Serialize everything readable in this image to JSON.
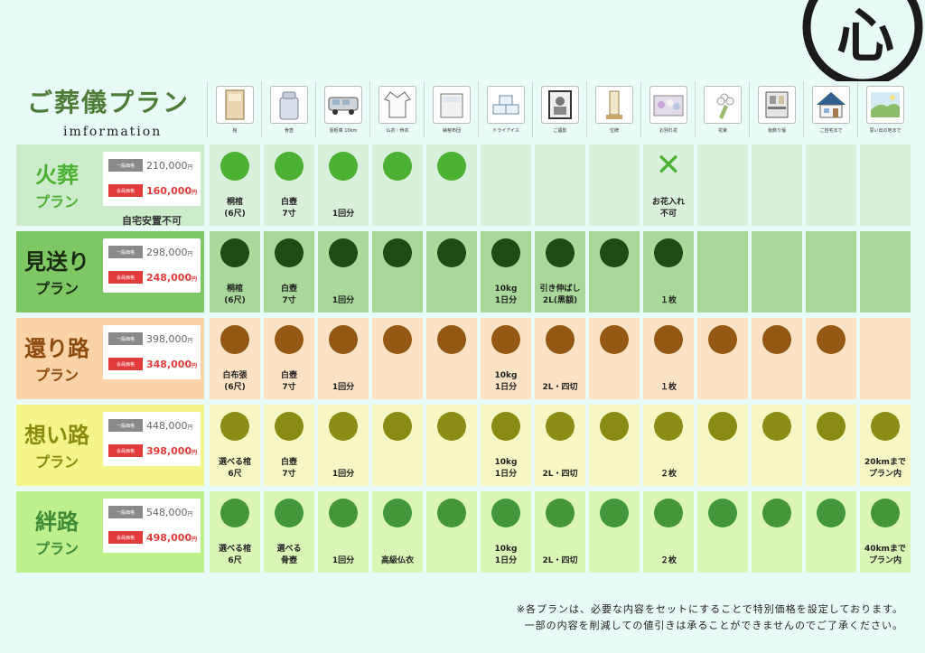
{
  "title": {
    "main": "ご葬儀プラン",
    "sub": "imformation"
  },
  "logo_char": "心",
  "items": [
    {
      "icon": "coffin-icon",
      "label": "棺"
    },
    {
      "icon": "urn-icon",
      "label": "骨壺"
    },
    {
      "icon": "hearse-icon",
      "label": "霊柩車 10km"
    },
    {
      "icon": "burial-robe-icon",
      "label": "仏衣・骨衣"
    },
    {
      "icon": "bedding-icon",
      "label": "納棺布団"
    },
    {
      "icon": "dry-ice-icon",
      "label": "ドライアイス"
    },
    {
      "icon": "portrait-icon",
      "label": "ご遺影"
    },
    {
      "icon": "memorial-tablet-icon",
      "label": "位牌"
    },
    {
      "icon": "flowers-icon",
      "label": "お別れ花"
    },
    {
      "icon": "bouquet-icon",
      "label": "花束"
    },
    {
      "icon": "altar-icon",
      "label": "後飾り壇"
    },
    {
      "icon": "house-icon",
      "label": "ご自宅まで"
    },
    {
      "icon": "scenery-icon",
      "label": "思い出の地まで"
    }
  ],
  "plans": [
    {
      "name": "火葬",
      "suffix": "プラン",
      "name_color": "#4cb033",
      "label_bg": "#cdeccc",
      "cell_bg": "#d9f0da",
      "dot_color": "#4cb033",
      "regular_label": "一般価格",
      "regular_price": "210,000",
      "member_label": "会員価格",
      "member_price": "160,000",
      "yen": "円",
      "note": "自宅安置不可",
      "cells": [
        {
          "mark": "dot",
          "text": "桐棺\n(6尺)"
        },
        {
          "mark": "dot",
          "text": "白壺\n7寸"
        },
        {
          "mark": "dot",
          "text": "1回分"
        },
        {
          "mark": "dot",
          "text": ""
        },
        {
          "mark": "dot",
          "text": ""
        },
        {
          "mark": "",
          "text": ""
        },
        {
          "mark": "",
          "text": ""
        },
        {
          "mark": "",
          "text": ""
        },
        {
          "mark": "cross",
          "text": "お花入れ\n不可"
        },
        {
          "mark": "",
          "text": ""
        },
        {
          "mark": "",
          "text": ""
        },
        {
          "mark": "",
          "text": ""
        },
        {
          "mark": "",
          "text": ""
        }
      ]
    },
    {
      "name": "見送り",
      "suffix": "プラン",
      "name_color": "#1a2a10",
      "label_bg": "#7dc865",
      "cell_bg": "#a9d89a",
      "dot_color": "#1f4a13",
      "regular_label": "一般価格",
      "regular_price": "298,000",
      "member_label": "会員価格",
      "member_price": "248,000",
      "yen": "円",
      "note": "",
      "cells": [
        {
          "mark": "dot",
          "text": "桐棺\n(6尺)"
        },
        {
          "mark": "dot",
          "text": "白壺\n7寸"
        },
        {
          "mark": "dot",
          "text": "1回分"
        },
        {
          "mark": "dot",
          "text": ""
        },
        {
          "mark": "dot",
          "text": ""
        },
        {
          "mark": "dot",
          "text": "10kg\n1日分"
        },
        {
          "mark": "dot",
          "text": "引き伸ばし\n2L(黒額)"
        },
        {
          "mark": "dot",
          "text": ""
        },
        {
          "mark": "dot",
          "text": "１枚"
        },
        {
          "mark": "",
          "text": ""
        },
        {
          "mark": "",
          "text": ""
        },
        {
          "mark": "",
          "text": ""
        },
        {
          "mark": "",
          "text": ""
        }
      ]
    },
    {
      "name": "還り路",
      "suffix": "プラン",
      "name_color": "#8b4a0e",
      "label_bg": "#fbd3a9",
      "cell_bg": "#fde2c4",
      "dot_color": "#935914",
      "regular_label": "一般価格",
      "regular_price": "398,000",
      "member_label": "会員価格",
      "member_price": "348,000",
      "yen": "円",
      "note": "",
      "cells": [
        {
          "mark": "dot",
          "text": "白布張\n(6尺)"
        },
        {
          "mark": "dot",
          "text": "白壺\n7寸"
        },
        {
          "mark": "dot",
          "text": "1回分"
        },
        {
          "mark": "dot",
          "text": ""
        },
        {
          "mark": "dot",
          "text": ""
        },
        {
          "mark": "dot",
          "text": "10kg\n1日分"
        },
        {
          "mark": "dot",
          "text": "2L・四切"
        },
        {
          "mark": "dot",
          "text": ""
        },
        {
          "mark": "dot",
          "text": "１枚"
        },
        {
          "mark": "dot",
          "text": ""
        },
        {
          "mark": "dot",
          "text": ""
        },
        {
          "mark": "dot",
          "text": ""
        },
        {
          "mark": "",
          "text": ""
        }
      ]
    },
    {
      "name": "想い路",
      "suffix": "プラン",
      "name_color": "#8c8a0e",
      "label_bg": "#f4f58a",
      "cell_bg": "#f6f7c4",
      "dot_color": "#8b8c16",
      "regular_label": "一般価格",
      "regular_price": "448,000",
      "member_label": "会員価格",
      "member_price": "398,000",
      "yen": "円",
      "note": "",
      "cells": [
        {
          "mark": "dot",
          "text": "選べる棺\n6尺"
        },
        {
          "mark": "dot",
          "text": "白壺\n7寸"
        },
        {
          "mark": "dot",
          "text": "1回分"
        },
        {
          "mark": "dot",
          "text": ""
        },
        {
          "mark": "dot",
          "text": ""
        },
        {
          "mark": "dot",
          "text": "10kg\n1日分"
        },
        {
          "mark": "dot",
          "text": "2L・四切"
        },
        {
          "mark": "dot",
          "text": ""
        },
        {
          "mark": "dot",
          "text": "２枚"
        },
        {
          "mark": "dot",
          "text": ""
        },
        {
          "mark": "dot",
          "text": ""
        },
        {
          "mark": "dot",
          "text": ""
        },
        {
          "mark": "dot",
          "text": "20kmまで\nプラン内"
        }
      ]
    },
    {
      "name": "絆路",
      "suffix": "プラン",
      "name_color": "#3f8a36",
      "label_bg": "#bff08e",
      "cell_bg": "#d9f6b6",
      "dot_color": "#449638",
      "regular_label": "一般価格",
      "regular_price": "548,000",
      "member_label": "会員価格",
      "member_price": "498,000",
      "yen": "円",
      "note": "",
      "cells": [
        {
          "mark": "dot",
          "text": "選べる棺\n6尺"
        },
        {
          "mark": "dot",
          "text": "選べる\n骨壺"
        },
        {
          "mark": "dot",
          "text": "1回分"
        },
        {
          "mark": "dot",
          "text": "高級仏衣"
        },
        {
          "mark": "dot",
          "text": ""
        },
        {
          "mark": "dot",
          "text": "10kg\n1日分"
        },
        {
          "mark": "dot",
          "text": "2L・四切"
        },
        {
          "mark": "dot",
          "text": ""
        },
        {
          "mark": "dot",
          "text": "２枚"
        },
        {
          "mark": "dot",
          "text": ""
        },
        {
          "mark": "dot",
          "text": ""
        },
        {
          "mark": "dot",
          "text": ""
        },
        {
          "mark": "dot",
          "text": "40kmまで\nプラン内"
        }
      ]
    }
  ],
  "footer": {
    "line1": "※各プランは、必要な内容をセットにすることで特別価格を設定しております。",
    "line2": "一部の内容を削減しての値引きは承ることができませんのでご了承ください。"
  }
}
